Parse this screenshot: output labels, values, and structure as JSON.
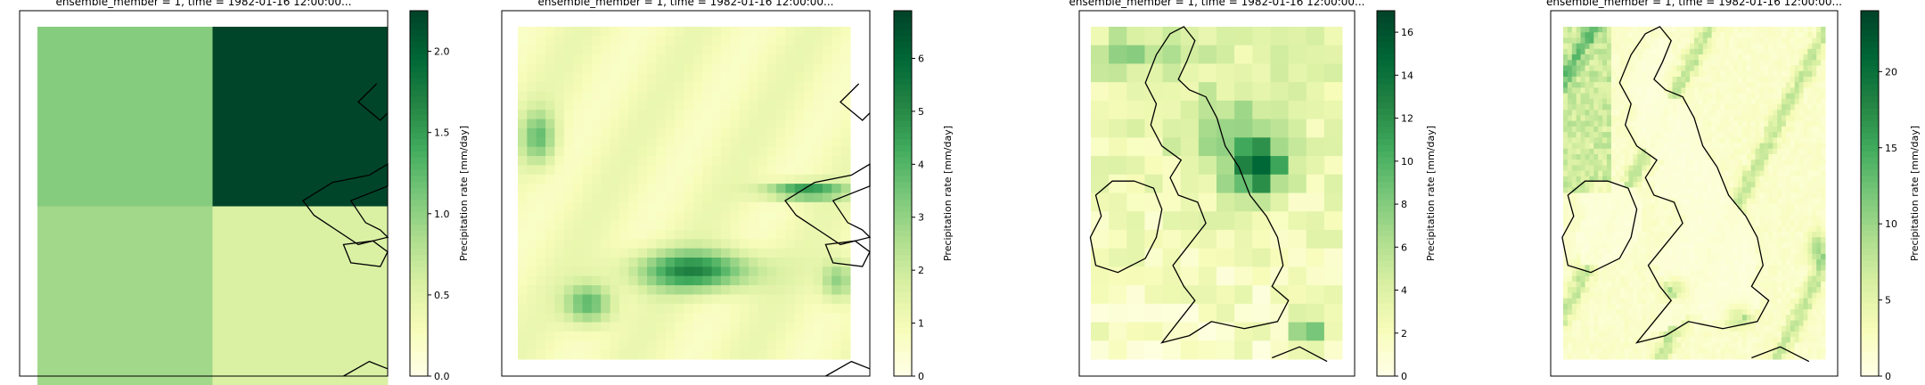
{
  "colors": {
    "cmap": [
      "#ffffe5",
      "#f7fcb9",
      "#d9f0a3",
      "#addd8e",
      "#78c679",
      "#41ab5d",
      "#238443",
      "#006837",
      "#004529"
    ],
    "coast": "#000000",
    "frame": "#000000"
  },
  "chart_data": [
    {
      "type": "heatmap",
      "title": "ensemble_member = 1, time = 1982-01-16 12:00:00...",
      "colorbar": {
        "label": "Precipitation rate [mm/day]",
        "range": [
          0,
          2.25
        ],
        "ticks": [
          "0.0",
          "0.5",
          "1.0",
          "1.5",
          "2.0"
        ],
        "tick_values": [
          0,
          0.5,
          1,
          1.5,
          2
        ]
      },
      "grid": {
        "rows": 2,
        "cols": 2,
        "values": [
          [
            1.05,
            2.25
          ],
          [
            0.9,
            0.55
          ]
        ]
      },
      "coastline": "fragment-east"
    },
    {
      "type": "heatmap",
      "title": "ensemble_member = 1, time = 1982-01-16 12:00:00...",
      "colorbar": {
        "label": "Precipitation rate [mm/day]",
        "range": [
          0,
          6.9
        ],
        "ticks": [
          "0",
          "1",
          "2",
          "3",
          "4",
          "5",
          "6"
        ],
        "tick_values": [
          0,
          1,
          2,
          3,
          4,
          5,
          6
        ]
      },
      "field": "smooth-bands",
      "coastline": "fragment-east"
    },
    {
      "type": "heatmap",
      "title": "ensemble_member = 1, time = 1982-01-16 12:00:00...",
      "colorbar": {
        "label": "Precipitation rate [mm/day]",
        "range": [
          0,
          17
        ],
        "ticks": [
          "0",
          "2",
          "4",
          "6",
          "8",
          "10",
          "12",
          "14",
          "16"
        ],
        "tick_values": [
          0,
          2,
          4,
          6,
          8,
          10,
          12,
          14,
          16
        ]
      },
      "field": "coarse-uk",
      "coastline": "uk"
    },
    {
      "type": "heatmap",
      "title": "ensemble_member = 1, time = 1982-01-16 12:00:00...",
      "colorbar": {
        "label": "Precipitation rate [mm/day]",
        "range": [
          0,
          24
        ],
        "ticks": [
          "0",
          "5",
          "10",
          "15",
          "20"
        ],
        "tick_values": [
          0,
          5,
          10,
          15,
          20
        ]
      },
      "field": "fine-uk",
      "coastline": "uk"
    }
  ]
}
